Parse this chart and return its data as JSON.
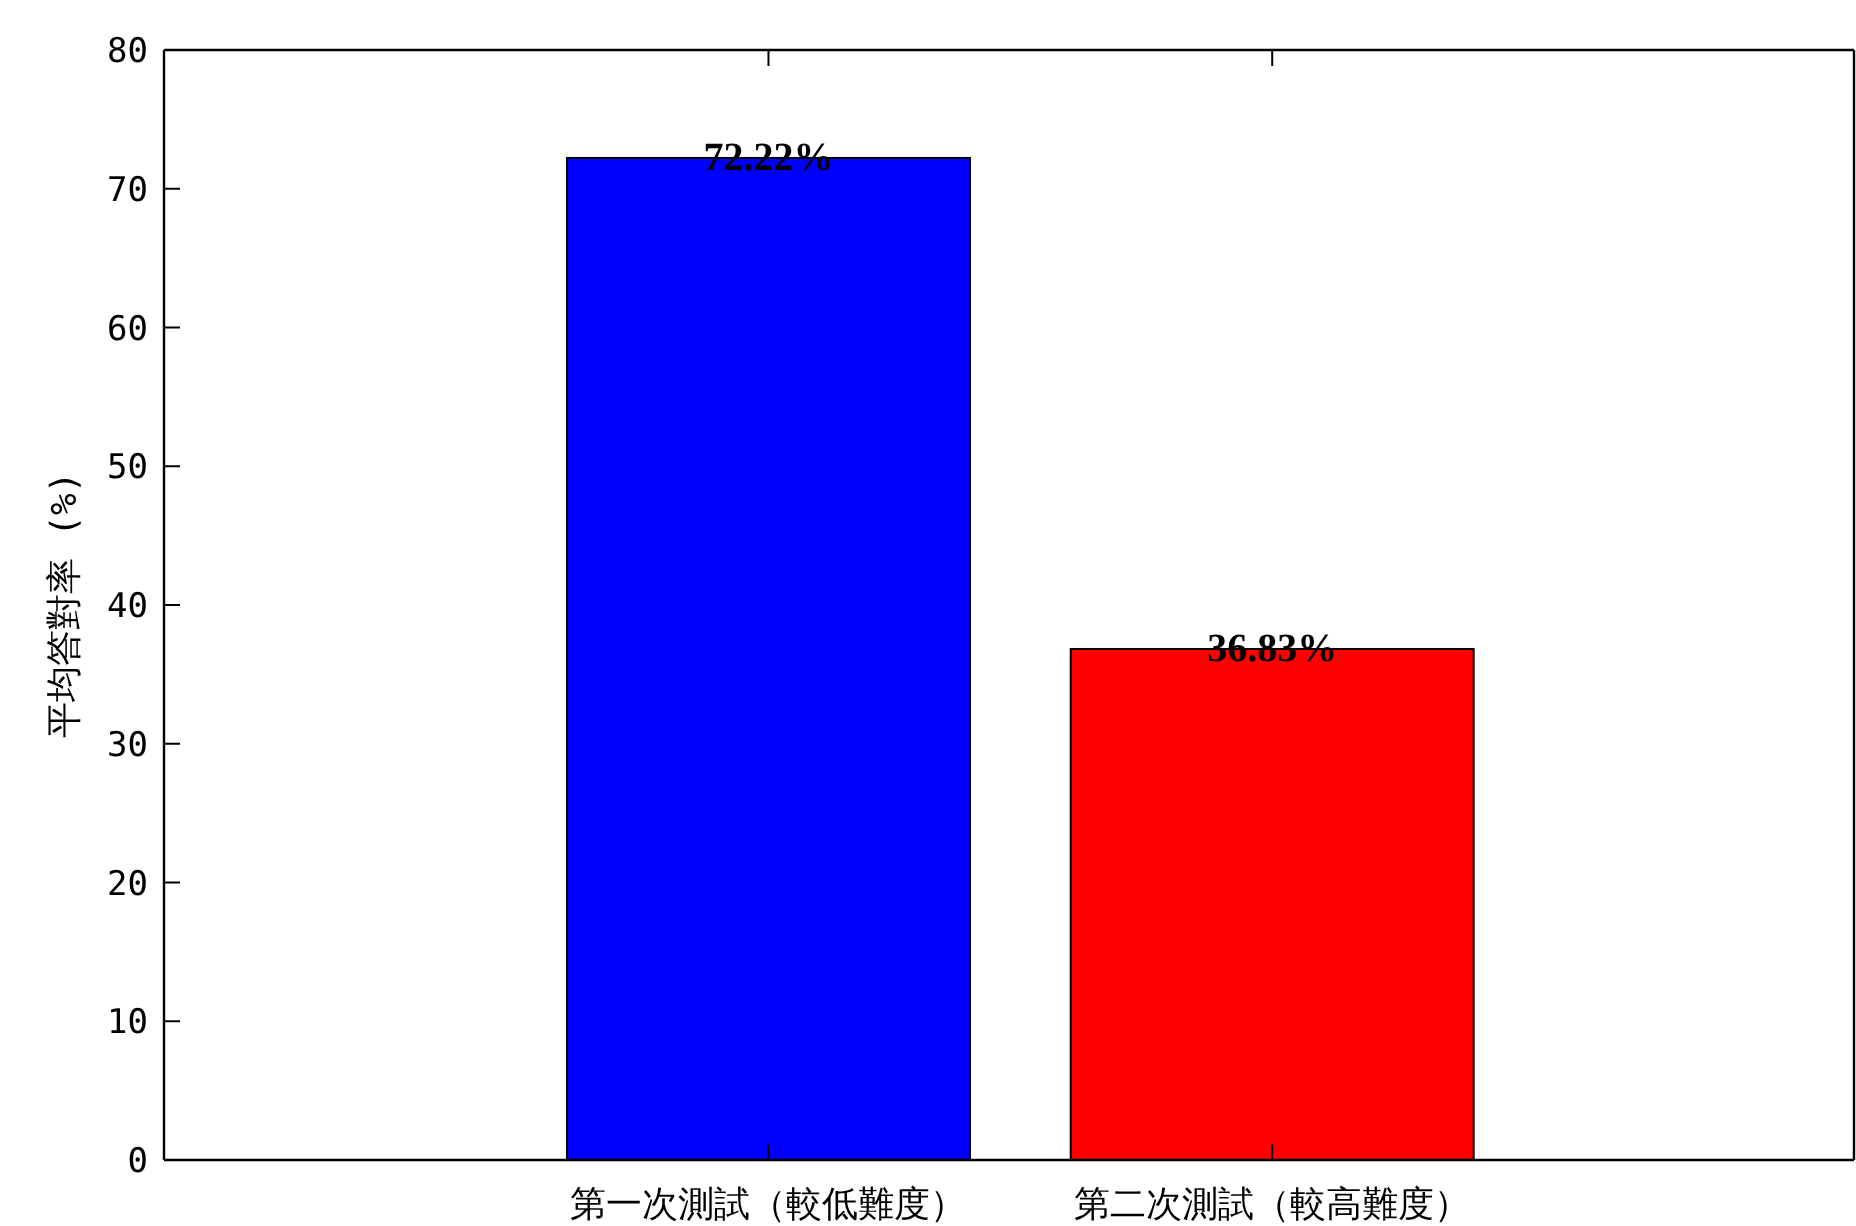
{
  "chart_data": {
    "type": "bar",
    "ylabel": "平均答對率 (%)",
    "categories": [
      "第一次測試（較低難度）",
      "第二次測試（較高難度）"
    ],
    "values": [
      72.22,
      36.83
    ],
    "colors": [
      "#0000ff",
      "#ff0000"
    ],
    "value_labels": [
      "72.22%",
      "36.83%"
    ],
    "ylim": [
      0,
      80
    ],
    "yticks": [
      0,
      10,
      20,
      30,
      40,
      50,
      60,
      70,
      80
    ],
    "grid": false
  }
}
